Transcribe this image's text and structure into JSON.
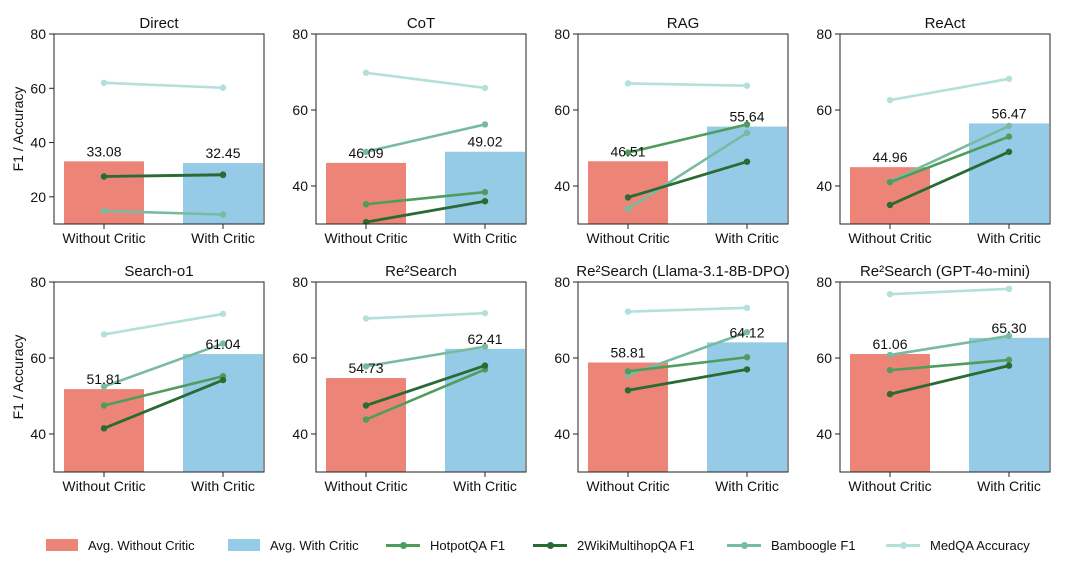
{
  "chart_data": [
    {
      "type": "bar",
      "title": "Direct",
      "ylabel": "F1 / Accuracy",
      "ylim": [
        10,
        80
      ],
      "yticks": [
        20,
        40,
        60,
        80
      ],
      "categories": [
        "Without Critic",
        "With Critic"
      ],
      "bars": [
        {
          "name": "Avg. Without Critic",
          "value": 33.08,
          "label": "33.08"
        },
        {
          "name": "Avg. With Critic",
          "value": 32.45,
          "label": "32.45"
        }
      ],
      "series": [
        {
          "name": "HotpotQA F1",
          "values": [
            27.5,
            28.0
          ]
        },
        {
          "name": "2WikiMultihopQA F1",
          "values": [
            27.5,
            28.2
          ]
        },
        {
          "name": "Bamboogle F1",
          "values": [
            14.8,
            13.5
          ]
        },
        {
          "name": "MedQA Accuracy",
          "values": [
            62.0,
            60.2
          ]
        }
      ]
    },
    {
      "type": "bar",
      "title": "CoT",
      "ylabel": "",
      "ylim": [
        30,
        80
      ],
      "yticks": [
        40,
        60,
        80
      ],
      "categories": [
        "Without Critic",
        "With Critic"
      ],
      "bars": [
        {
          "name": "Avg. Without Critic",
          "value": 46.09,
          "label": "46.09"
        },
        {
          "name": "Avg. With Critic",
          "value": 49.02,
          "label": "49.02"
        }
      ],
      "series": [
        {
          "name": "HotpotQA F1",
          "values": [
            35.2,
            38.4
          ]
        },
        {
          "name": "2WikiMultihopQA F1",
          "values": [
            30.5,
            36.0
          ]
        },
        {
          "name": "Bamboogle F1",
          "values": [
            49.0,
            56.2
          ]
        },
        {
          "name": "MedQA Accuracy",
          "values": [
            69.8,
            65.8
          ]
        }
      ]
    },
    {
      "type": "bar",
      "title": "RAG",
      "ylabel": "",
      "ylim": [
        30,
        80
      ],
      "yticks": [
        40,
        60,
        80
      ],
      "categories": [
        "Without Critic",
        "With Critic"
      ],
      "bars": [
        {
          "name": "Avg. Without Critic",
          "value": 46.51,
          "label": "46.51"
        },
        {
          "name": "Avg. With Critic",
          "value": 55.64,
          "label": "55.64"
        }
      ],
      "series": [
        {
          "name": "HotpotQA F1",
          "values": [
            48.8,
            56.2
          ]
        },
        {
          "name": "2WikiMultihopQA F1",
          "values": [
            37.0,
            46.4
          ]
        },
        {
          "name": "Bamboogle F1",
          "values": [
            34.0,
            54.0
          ]
        },
        {
          "name": "MedQA Accuracy",
          "values": [
            67.0,
            66.4
          ]
        }
      ]
    },
    {
      "type": "bar",
      "title": "ReAct",
      "ylabel": "",
      "ylim": [
        30,
        80
      ],
      "yticks": [
        40,
        60,
        80
      ],
      "categories": [
        "Without Critic",
        "With Critic"
      ],
      "bars": [
        {
          "name": "Avg. Without Critic",
          "value": 44.96,
          "label": "44.96"
        },
        {
          "name": "Avg. With Critic",
          "value": 56.47,
          "label": "56.47"
        }
      ],
      "series": [
        {
          "name": "HotpotQA F1",
          "values": [
            41.0,
            53.0
          ]
        },
        {
          "name": "2WikiMultihopQA F1",
          "values": [
            35.0,
            49.0
          ]
        },
        {
          "name": "Bamboogle F1",
          "values": [
            41.2,
            55.8
          ]
        },
        {
          "name": "MedQA Accuracy",
          "values": [
            62.6,
            68.2
          ]
        }
      ]
    },
    {
      "type": "bar",
      "title": "Search-o1",
      "ylabel": "F1 / Accuracy",
      "ylim": [
        30,
        80
      ],
      "yticks": [
        40,
        60,
        80
      ],
      "categories": [
        "Without Critic",
        "With Critic"
      ],
      "bars": [
        {
          "name": "Avg. Without Critic",
          "value": 51.81,
          "label": "51.81"
        },
        {
          "name": "Avg. With Critic",
          "value": 61.04,
          "label": "61.04"
        }
      ],
      "series": [
        {
          "name": "HotpotQA F1",
          "values": [
            47.5,
            55.2
          ]
        },
        {
          "name": "2WikiMultihopQA F1",
          "values": [
            41.5,
            54.2
          ]
        },
        {
          "name": "Bamboogle F1",
          "values": [
            52.5,
            63.8
          ]
        },
        {
          "name": "MedQA Accuracy",
          "values": [
            66.2,
            71.6
          ]
        }
      ]
    },
    {
      "type": "bar",
      "title": "Re²Search",
      "ylabel": "",
      "ylim": [
        30,
        80
      ],
      "yticks": [
        40,
        60,
        80
      ],
      "categories": [
        "Without Critic",
        "With Critic"
      ],
      "bars": [
        {
          "name": "Avg. Without Critic",
          "value": 54.73,
          "label": "54.73"
        },
        {
          "name": "Avg. With Critic",
          "value": 62.41,
          "label": "62.41"
        }
      ],
      "series": [
        {
          "name": "HotpotQA F1",
          "values": [
            43.8,
            57.0
          ]
        },
        {
          "name": "2WikiMultihopQA F1",
          "values": [
            47.5,
            58.0
          ]
        },
        {
          "name": "Bamboogle F1",
          "values": [
            57.8,
            63.0
          ]
        },
        {
          "name": "MedQA Accuracy",
          "values": [
            70.4,
            71.8
          ]
        }
      ]
    },
    {
      "type": "bar",
      "title": "Re²Search (Llama-3.1-8B-DPO)",
      "ylabel": "",
      "ylim": [
        30,
        80
      ],
      "yticks": [
        40,
        60,
        80
      ],
      "categories": [
        "Without Critic",
        "With Critic"
      ],
      "bars": [
        {
          "name": "Avg. Without Critic",
          "value": 58.81,
          "label": "58.81"
        },
        {
          "name": "Avg. With Critic",
          "value": 64.12,
          "label": "64.12"
        }
      ],
      "series": [
        {
          "name": "HotpotQA F1",
          "values": [
            56.5,
            60.2
          ]
        },
        {
          "name": "2WikiMultihopQA F1",
          "values": [
            51.5,
            57.0
          ]
        },
        {
          "name": "Bamboogle F1",
          "values": [
            55.5,
            66.8
          ]
        },
        {
          "name": "MedQA Accuracy",
          "values": [
            72.2,
            73.2
          ]
        }
      ]
    },
    {
      "type": "bar",
      "title": "Re²Search (GPT-4o-mini)",
      "ylabel": "",
      "ylim": [
        30,
        80
      ],
      "yticks": [
        40,
        60,
        80
      ],
      "categories": [
        "Without Critic",
        "With Critic"
      ],
      "bars": [
        {
          "name": "Avg. Without Critic",
          "value": 61.06,
          "label": "61.06"
        },
        {
          "name": "Avg. With Critic",
          "value": 65.3,
          "label": "65.30"
        }
      ],
      "series": [
        {
          "name": "HotpotQA F1",
          "values": [
            56.8,
            59.5
          ]
        },
        {
          "name": "2WikiMultihopQA F1",
          "values": [
            50.5,
            58.0
          ]
        },
        {
          "name": "Bamboogle F1",
          "values": [
            60.8,
            65.8
          ]
        },
        {
          "name": "MedQA Accuracy",
          "values": [
            76.8,
            78.2
          ]
        }
      ]
    }
  ],
  "colors": {
    "Avg. Without Critic": "#ec8577",
    "Avg. With Critic": "#95cbe6",
    "HotpotQA F1": "#4e9d5c",
    "2WikiMultihopQA F1": "#2a6a33",
    "Bamboogle F1": "#78bba0",
    "MedQA Accuracy": "#b3e0da"
  },
  "legend": [
    {
      "label": "Avg. Without Critic",
      "kind": "bar"
    },
    {
      "label": "Avg. With Critic",
      "kind": "bar"
    },
    {
      "label": "HotpotQA F1",
      "kind": "line"
    },
    {
      "label": "2WikiMultihopQA F1",
      "kind": "line"
    },
    {
      "label": "Bamboogle F1",
      "kind": "line"
    },
    {
      "label": "MedQA Accuracy",
      "kind": "line"
    }
  ]
}
